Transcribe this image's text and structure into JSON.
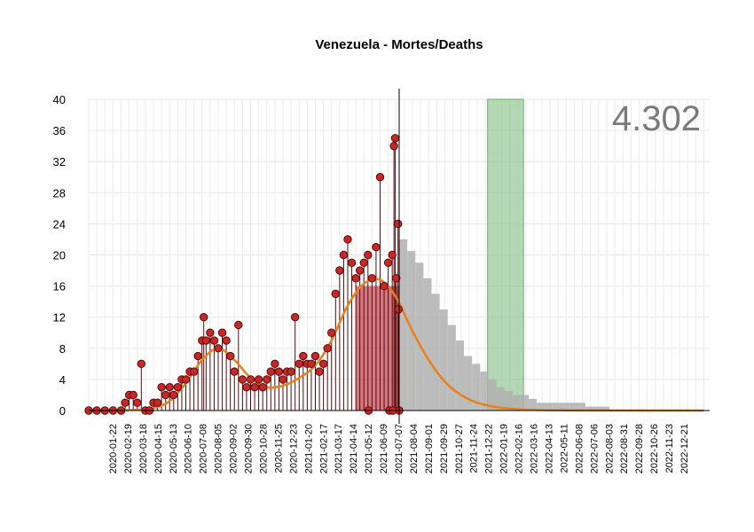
{
  "chart_data": {
    "type": "line",
    "title": "Venezuela - Mortes/Deaths",
    "total_label": "4.302",
    "xlabel": "",
    "ylabel": "",
    "x_range": [
      "2020-01-22",
      "2022-12-31"
    ],
    "ylim": [
      0,
      40
    ],
    "y_ticks": [
      0,
      4,
      8,
      12,
      16,
      20,
      24,
      28,
      32,
      36,
      40
    ],
    "x_tick_labels": [
      "2020-01-22",
      "2020-02-19",
      "2020-03-18",
      "2020-04-15",
      "2020-05-13",
      "2020-06-10",
      "2020-07-08",
      "2020-08-05",
      "2020-09-02",
      "2020-09-30",
      "2020-10-28",
      "2020-11-25",
      "2020-12-23",
      "2021-01-20",
      "2021-02-17",
      "2021-03-17",
      "2021-04-14",
      "2021-05-12",
      "2021-06-09",
      "2021-07-07",
      "2021-08-04",
      "2021-09-01",
      "2021-09-29",
      "2021-10-27",
      "2021-11-24",
      "2021-12-22",
      "2022-01-19",
      "2022-02-16",
      "2022-03-16",
      "2022-04-13",
      "2022-05-11",
      "2022-06-08",
      "2022-07-06",
      "2022-08-03",
      "2022-08-31",
      "2022-09-28",
      "2022-10-26",
      "2022-11-23",
      "2022-12-21"
    ],
    "grid": true,
    "current_date": "2021-07-12",
    "observed_points": [
      [
        "2020-01-22",
        0
      ],
      [
        "2020-02-05",
        0
      ],
      [
        "2020-02-19",
        0
      ],
      [
        "2020-03-04",
        0
      ],
      [
        "2020-03-18",
        0
      ],
      [
        "2020-03-25",
        1
      ],
      [
        "2020-04-01",
        2
      ],
      [
        "2020-04-08",
        2
      ],
      [
        "2020-04-15",
        1
      ],
      [
        "2020-04-22",
        6
      ],
      [
        "2020-04-29",
        0
      ],
      [
        "2020-05-06",
        0
      ],
      [
        "2020-05-13",
        1
      ],
      [
        "2020-05-20",
        1
      ],
      [
        "2020-05-27",
        3
      ],
      [
        "2020-06-03",
        2
      ],
      [
        "2020-06-10",
        3
      ],
      [
        "2020-06-17",
        2
      ],
      [
        "2020-06-24",
        3
      ],
      [
        "2020-07-01",
        4
      ],
      [
        "2020-07-08",
        4
      ],
      [
        "2020-07-15",
        5
      ],
      [
        "2020-07-22",
        5
      ],
      [
        "2020-07-29",
        7
      ],
      [
        "2020-08-05",
        9
      ],
      [
        "2020-08-08",
        12
      ],
      [
        "2020-08-12",
        9
      ],
      [
        "2020-08-19",
        10
      ],
      [
        "2020-08-26",
        9
      ],
      [
        "2020-09-02",
        8
      ],
      [
        "2020-09-09",
        10
      ],
      [
        "2020-09-16",
        9
      ],
      [
        "2020-09-23",
        7
      ],
      [
        "2020-09-30",
        5
      ],
      [
        "2020-10-07",
        11
      ],
      [
        "2020-10-14",
        4
      ],
      [
        "2020-10-21",
        3
      ],
      [
        "2020-10-28",
        4
      ],
      [
        "2020-11-04",
        3
      ],
      [
        "2020-11-11",
        4
      ],
      [
        "2020-11-18",
        3
      ],
      [
        "2020-11-25",
        4
      ],
      [
        "2020-12-02",
        5
      ],
      [
        "2020-12-09",
        6
      ],
      [
        "2020-12-16",
        5
      ],
      [
        "2020-12-23",
        4
      ],
      [
        "2020-12-30",
        5
      ],
      [
        "2021-01-06",
        5
      ],
      [
        "2021-01-13",
        12
      ],
      [
        "2021-01-20",
        6
      ],
      [
        "2021-01-27",
        7
      ],
      [
        "2021-02-03",
        6
      ],
      [
        "2021-02-10",
        6
      ],
      [
        "2021-02-17",
        7
      ],
      [
        "2021-02-24",
        5
      ],
      [
        "2021-03-03",
        6
      ],
      [
        "2021-03-10",
        8
      ],
      [
        "2021-03-17",
        10
      ],
      [
        "2021-03-24",
        15
      ],
      [
        "2021-03-31",
        18
      ],
      [
        "2021-04-07",
        20
      ],
      [
        "2021-04-14",
        22
      ],
      [
        "2021-04-21",
        19
      ],
      [
        "2021-04-28",
        17
      ],
      [
        "2021-05-05",
        18
      ],
      [
        "2021-05-12",
        19
      ],
      [
        "2021-05-19",
        20
      ],
      [
        "2021-05-26",
        17
      ],
      [
        "2021-06-02",
        21
      ],
      [
        "2021-06-09",
        30
      ],
      [
        "2021-06-16",
        16
      ],
      [
        "2021-06-23",
        19
      ],
      [
        "2021-06-30",
        20
      ],
      [
        "2021-07-03",
        34
      ],
      [
        "2021-07-05",
        35
      ],
      [
        "2021-07-07",
        17
      ],
      [
        "2021-07-10",
        24
      ],
      [
        "2021-07-11",
        13
      ],
      [
        "2021-07-12",
        0
      ],
      [
        "2021-05-20",
        0
      ],
      [
        "2021-06-25",
        0
      ],
      [
        "2021-07-01",
        0
      ]
    ],
    "smooth_curve": [
      [
        "2020-01-22",
        0
      ],
      [
        "2020-04-15",
        0.1
      ],
      [
        "2020-05-13",
        0.3
      ],
      [
        "2020-06-10",
        1.2
      ],
      [
        "2020-07-08",
        3.5
      ],
      [
        "2020-08-05",
        6.5
      ],
      [
        "2020-09-02",
        8.0
      ],
      [
        "2020-09-30",
        6.5
      ],
      [
        "2020-10-28",
        4.2
      ],
      [
        "2020-11-25",
        3.0
      ],
      [
        "2020-12-23",
        3.2
      ],
      [
        "2021-01-20",
        4.2
      ],
      [
        "2021-02-17",
        5.8
      ],
      [
        "2021-03-17",
        9.0
      ],
      [
        "2021-04-14",
        13.5
      ],
      [
        "2021-05-12",
        16.3
      ],
      [
        "2021-06-09",
        16.8
      ],
      [
        "2021-07-07",
        14.5
      ],
      [
        "2021-08-04",
        10.2
      ],
      [
        "2021-09-01",
        6.5
      ],
      [
        "2021-09-29",
        3.7
      ],
      [
        "2021-10-27",
        2.0
      ],
      [
        "2021-11-24",
        1.0
      ],
      [
        "2021-12-22",
        0.5
      ],
      [
        "2022-01-19",
        0.25
      ],
      [
        "2022-02-16",
        0.12
      ],
      [
        "2022-04-13",
        0.04
      ],
      [
        "2022-06-08",
        0.01
      ],
      [
        "2022-12-21",
        0
      ]
    ],
    "forecast_bands": [
      [
        "2021-07-12",
        22
      ],
      [
        "2021-07-26",
        20.5
      ],
      [
        "2021-08-09",
        19
      ],
      [
        "2021-08-23",
        17
      ],
      [
        "2021-09-06",
        15
      ],
      [
        "2021-09-20",
        13
      ],
      [
        "2021-10-04",
        11
      ],
      [
        "2021-10-18",
        9
      ],
      [
        "2021-11-01",
        7
      ],
      [
        "2021-11-15",
        6
      ],
      [
        "2021-11-29",
        5
      ],
      [
        "2021-12-13",
        4
      ],
      [
        "2021-12-27",
        3
      ],
      [
        "2022-01-10",
        2.5
      ],
      [
        "2022-01-24",
        2
      ],
      [
        "2022-02-07",
        2
      ],
      [
        "2022-02-21",
        1.5
      ],
      [
        "2022-03-07",
        1
      ],
      [
        "2022-04-04",
        1
      ],
      [
        "2022-05-02",
        1
      ],
      [
        "2022-05-30",
        0.5
      ],
      [
        "2022-06-27",
        0.5
      ],
      [
        "2022-07-11",
        0.5
      ]
    ],
    "red_band": {
      "start": "2021-04-28",
      "end": "2021-07-12",
      "height": 16
    },
    "green_band": {
      "start": "2021-12-12",
      "end": "2022-02-12",
      "height": 40
    },
    "colors": {
      "points": "#c62828",
      "point_stroke": "#5a0a0a",
      "smooth": "#e8801a",
      "red_band": "#c0404f",
      "green_band": "#8cc28c",
      "forecast": "#b0b0b0",
      "total": "#7a7a7a"
    }
  }
}
